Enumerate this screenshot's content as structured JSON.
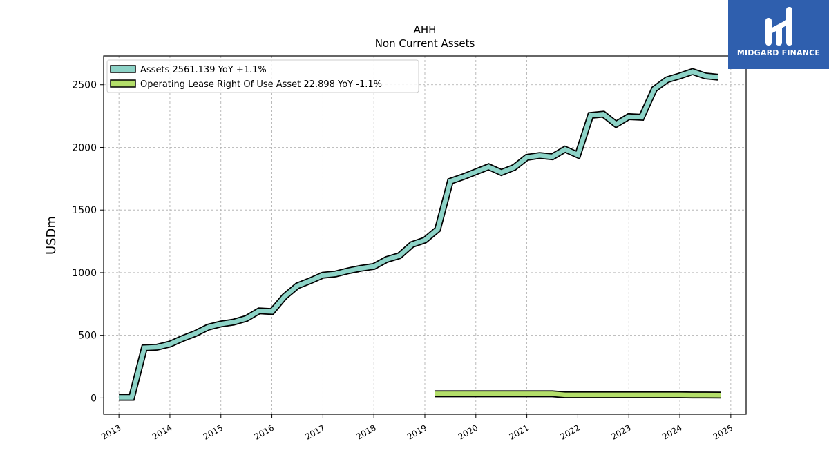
{
  "brand": {
    "name": "MIDGARD FINANCE",
    "bg_color": "#2f5fae"
  },
  "chart_data": {
    "type": "line",
    "title": "AHH",
    "subtitle": "Non Current  Assets",
    "xlabel": "",
    "ylabel": "USDm",
    "xlim": [
      2012.7,
      2025.3
    ],
    "ylim": [
      -130,
      2730
    ],
    "x_ticks": [
      "2013",
      "2014",
      "2015",
      "2016",
      "2017",
      "2018",
      "2019",
      "2020",
      "2021",
      "2022",
      "2023",
      "2024",
      "2025"
    ],
    "y_ticks": [
      0,
      500,
      1000,
      1500,
      2000,
      2500
    ],
    "grid": true,
    "legend_position": "top-left",
    "series": [
      {
        "name": "Assets  2561.139 YoY +1.1%",
        "color": "#8dd3c7",
        "x": [
          2013.0,
          2013.25,
          2013.5,
          2013.75,
          2014.0,
          2014.25,
          2014.5,
          2014.75,
          2015.0,
          2015.25,
          2015.5,
          2015.75,
          2016.0,
          2016.25,
          2016.5,
          2016.75,
          2017.0,
          2017.25,
          2017.5,
          2017.75,
          2018.0,
          2018.25,
          2018.5,
          2018.75,
          2019.0,
          2019.25,
          2019.5,
          2019.75,
          2020.0,
          2020.25,
          2020.5,
          2020.75,
          2021.0,
          2021.25,
          2021.5,
          2021.75,
          2022.0,
          2022.25,
          2022.5,
          2022.75,
          2023.0,
          2023.25,
          2023.5,
          2023.75,
          2024.0,
          2024.25,
          2024.5,
          2024.75
        ],
        "values": [
          5,
          5,
          400,
          405,
          430,
          475,
          515,
          565,
          590,
          605,
          635,
          695,
          690,
          810,
          895,
          935,
          980,
          990,
          1015,
          1035,
          1050,
          1105,
          1135,
          1225,
          1260,
          1345,
          1730,
          1765,
          1805,
          1845,
          1800,
          1840,
          1920,
          1935,
          1925,
          1985,
          1940,
          2255,
          2265,
          2185,
          2245,
          2240,
          2465,
          2540,
          2570,
          2605,
          2570,
          2560
        ]
      },
      {
        "name": "Operating Lease Right Of Use Asset  22.898 YoY -1.1%",
        "color": "#b3de69",
        "x": [
          2019.2,
          2019.5,
          2019.75,
          2020.0,
          2020.25,
          2020.5,
          2020.75,
          2021.0,
          2021.25,
          2021.5,
          2021.75,
          2022.0,
          2022.25,
          2022.5,
          2022.75,
          2023.0,
          2023.25,
          2023.5,
          2023.75,
          2024.0,
          2024.25,
          2024.5,
          2024.8
        ],
        "values": [
          33,
          33,
          33,
          33,
          33,
          33,
          33,
          33,
          33,
          33,
          25,
          25,
          25,
          25,
          25,
          25,
          25,
          25,
          25,
          25,
          24,
          24,
          23
        ]
      }
    ]
  }
}
